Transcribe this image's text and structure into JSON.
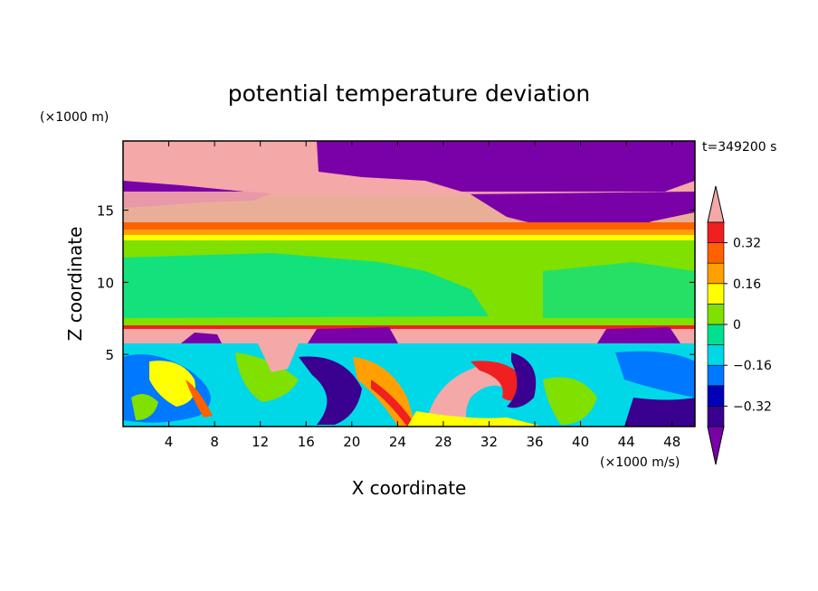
{
  "chart_data": {
    "type": "heatmap",
    "title": "potential temperature deviation",
    "xlabel": "X coordinate",
    "ylabel": "Z coordinate",
    "x_unit": "(×1000 m/s)",
    "y_unit": "(×1000 m)",
    "time_label": "t=349200 s",
    "xlim": [
      0,
      50
    ],
    "ylim": [
      0,
      19.8
    ],
    "x_ticks": [
      4,
      8,
      12,
      16,
      20,
      24,
      28,
      32,
      36,
      40,
      44,
      48
    ],
    "y_ticks": [
      5,
      10,
      15
    ],
    "colorbar": {
      "levels": [
        -0.4,
        -0.32,
        -0.24,
        -0.16,
        -0.08,
        0,
        0.08,
        0.16,
        0.24,
        0.32,
        0.4
      ],
      "tick_labels": [
        "0.32",
        "0.16",
        "0",
        "−0.16",
        "−0.32"
      ],
      "tick_values": [
        0.32,
        0.16,
        0,
        -0.16,
        -0.32
      ],
      "colors": [
        "#7a00a8",
        "#3a0090",
        "#0000b8",
        "#0078ff",
        "#00d8e8",
        "#00e090",
        "#80e000",
        "#ffff00",
        "#ffa000",
        "#ff6000",
        "#f02020",
        "#f4a8a8"
      ],
      "extend": "both"
    }
  }
}
